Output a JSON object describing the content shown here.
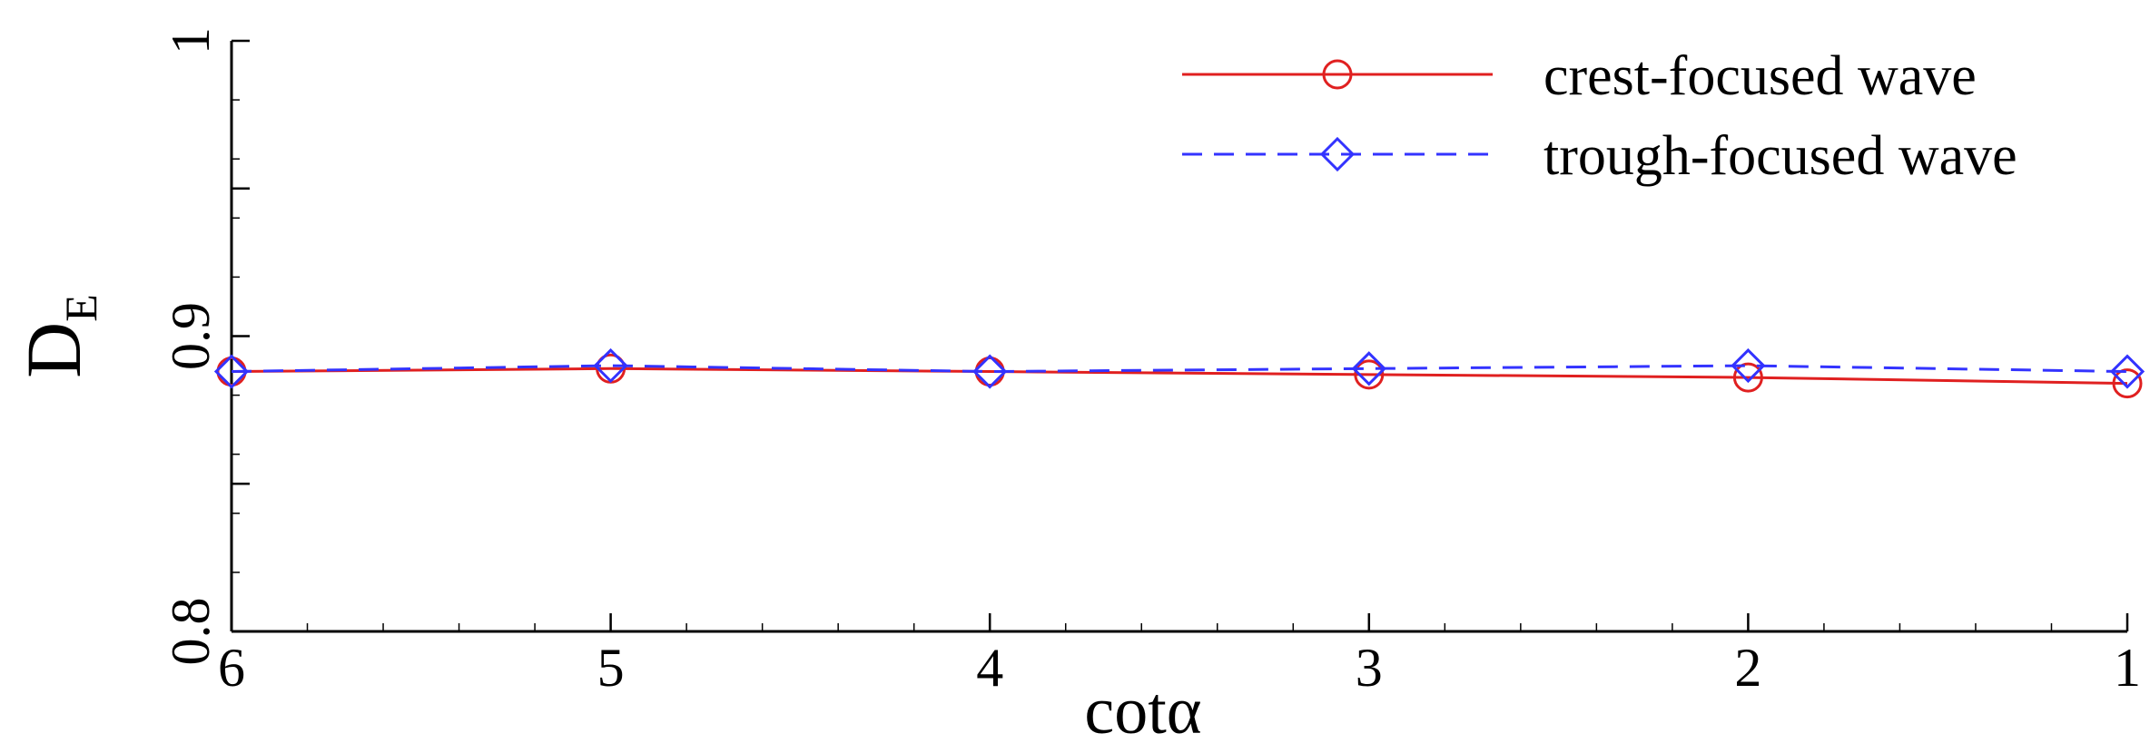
{
  "chart_data": {
    "type": "line",
    "xlabel": "cotα",
    "ylabel": "D",
    "ylabel_subscript": "E",
    "xlim": [
      6,
      1
    ],
    "ylim": [
      0.8,
      1.0
    ],
    "x_reversed": true,
    "x_ticks": [
      6,
      5,
      4,
      3,
      2,
      1
    ],
    "x_tick_labels": [
      "6",
      "5",
      "4",
      "3",
      "2",
      "1"
    ],
    "y_ticks": [
      0.8,
      0.9,
      1.0
    ],
    "y_tick_labels": [
      "0.8",
      "0.9",
      "1"
    ],
    "grid": false,
    "legend_position": "top-right",
    "x": [
      6,
      5,
      4,
      3,
      2,
      1
    ],
    "series": [
      {
        "name": "crest-focused wave",
        "values": [
          0.888,
          0.889,
          0.888,
          0.887,
          0.886,
          0.884
        ],
        "color": "#e02020",
        "line": "solid",
        "marker": "circle"
      },
      {
        "name": "trough-focused wave",
        "values": [
          0.888,
          0.89,
          0.888,
          0.889,
          0.89,
          0.888
        ],
        "color": "#3333ff",
        "line": "dashed",
        "marker": "diamond"
      }
    ]
  }
}
